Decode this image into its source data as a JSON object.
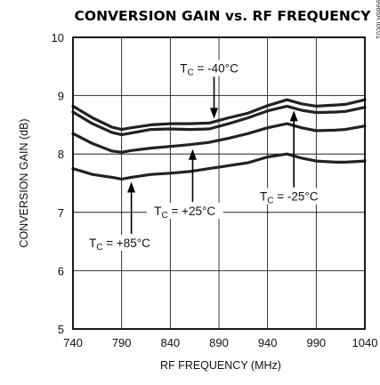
{
  "chart_data": {
    "type": "line",
    "title": "CONVERSION GAIN vs. RF FREQUENCY",
    "xlabel": "RF FREQUENCY (MHz)",
    "ylabel": "CONVERSION GAIN (dB)",
    "xlim": [
      740,
      1040
    ],
    "ylim": [
      5,
      10
    ],
    "x_ticks": [
      740,
      790,
      840,
      890,
      940,
      990,
      1040
    ],
    "y_ticks": [
      5,
      6,
      7,
      8,
      9,
      10
    ],
    "grid": true,
    "doc_id": "MAX9986A toc01",
    "series": [
      {
        "name": "TC = -40°C",
        "x": [
          740,
          760,
          780,
          790,
          800,
          820,
          840,
          860,
          880,
          900,
          920,
          940,
          960,
          975,
          990,
          1010,
          1020,
          1040
        ],
        "y": [
          8.82,
          8.62,
          8.46,
          8.42,
          8.45,
          8.5,
          8.52,
          8.52,
          8.53,
          8.62,
          8.7,
          8.83,
          8.93,
          8.86,
          8.82,
          8.84,
          8.85,
          8.93
        ]
      },
      {
        "name": "TC = -25°C",
        "x": [
          740,
          760,
          780,
          790,
          800,
          820,
          840,
          860,
          880,
          900,
          920,
          940,
          960,
          975,
          990,
          1010,
          1020,
          1040
        ],
        "y": [
          8.72,
          8.52,
          8.37,
          8.33,
          8.36,
          8.42,
          8.43,
          8.42,
          8.43,
          8.52,
          8.62,
          8.74,
          8.82,
          8.75,
          8.71,
          8.72,
          8.73,
          8.8
        ]
      },
      {
        "name": "TC = +25°C",
        "x": [
          740,
          760,
          780,
          790,
          800,
          820,
          840,
          860,
          880,
          900,
          920,
          940,
          960,
          975,
          990,
          1010,
          1020,
          1040
        ],
        "y": [
          8.35,
          8.18,
          8.05,
          8.03,
          8.06,
          8.1,
          8.13,
          8.16,
          8.2,
          8.27,
          8.35,
          8.45,
          8.52,
          8.45,
          8.4,
          8.41,
          8.42,
          8.48
        ]
      },
      {
        "name": "TC = +85°C",
        "x": [
          740,
          760,
          780,
          790,
          800,
          820,
          840,
          860,
          880,
          900,
          920,
          940,
          960,
          975,
          990,
          1010,
          1020,
          1040
        ],
        "y": [
          7.75,
          7.65,
          7.6,
          7.57,
          7.6,
          7.65,
          7.67,
          7.7,
          7.75,
          7.8,
          7.85,
          7.95,
          8.0,
          7.93,
          7.88,
          7.86,
          7.86,
          7.88
        ]
      }
    ],
    "annotations": [
      {
        "main": "T",
        "sub": "C",
        "rest": " = -40°C",
        "target_x": 885,
        "target_y": 8.53,
        "label_x": 880,
        "label_y": 9.4
      },
      {
        "main": "T",
        "sub": "C",
        "rest": " = +25°C",
        "target_x": 863,
        "target_y": 8.16,
        "label_x": 855,
        "label_y": 6.95
      },
      {
        "main": "T",
        "sub": "C",
        "rest": " = -25°C",
        "target_x": 967,
        "target_y": 8.82,
        "label_x": 962,
        "label_y": 7.2
      },
      {
        "main": "T",
        "sub": "C",
        "rest": " = +85°C",
        "target_x": 800,
        "target_y": 7.6,
        "label_x": 788,
        "label_y": 6.4
      }
    ]
  }
}
